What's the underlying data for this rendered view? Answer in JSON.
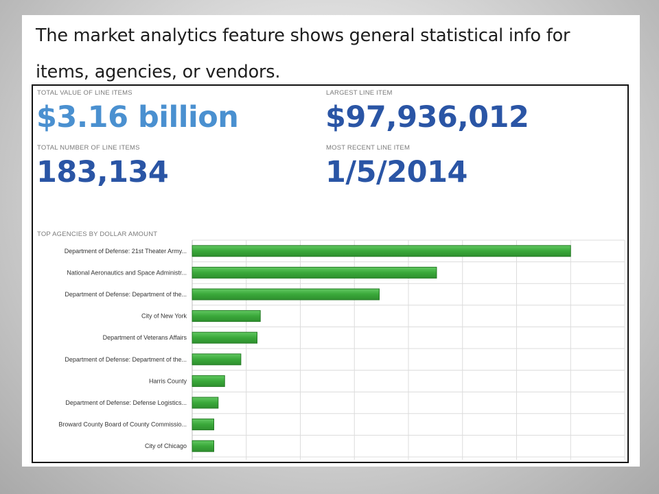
{
  "caption": "The market analytics feature shows general statistical info for items, agencies, or vendors.",
  "stats": {
    "total_value": {
      "label": "TOTAL VALUE OF LINE ITEMS",
      "value": "$3.16 billion"
    },
    "largest_item": {
      "label": "LARGEST LINE ITEM",
      "value": "$97,936,012"
    },
    "total_count": {
      "label": "TOTAL NUMBER OF LINE ITEMS",
      "value": "183,134"
    },
    "most_recent": {
      "label": "MOST RECENT LINE ITEM",
      "value": "1/5/2014"
    }
  },
  "colors": {
    "accent_light": "#4a90d0",
    "accent_dark": "#2a55a5",
    "bar": "#3aa83a",
    "bar_edge": "#247a24",
    "grid": "#dcdcdc"
  },
  "chart_data": {
    "type": "bar",
    "orientation": "horizontal",
    "title": "TOP AGENCIES BY DOLLAR AMOUNT",
    "xlabel": "",
    "ylabel": "",
    "grid": true,
    "legend": "none",
    "categories": [
      "Department of Defense: 21st Theater Army...",
      "National Aeronautics and Space Administr...",
      "Department of Defense: Department of the...",
      "City of New York",
      "Department of Veterans Affairs",
      "Department of Defense: Department of the...",
      "Harris County",
      "Department of Defense: Defense Logistics...",
      "Broward County Board of County Commissio...",
      "City of Chicago"
    ],
    "values": [
      350,
      226,
      173,
      63,
      60,
      45,
      30,
      24,
      20,
      20
    ],
    "xlim": [
      0,
      400
    ]
  }
}
